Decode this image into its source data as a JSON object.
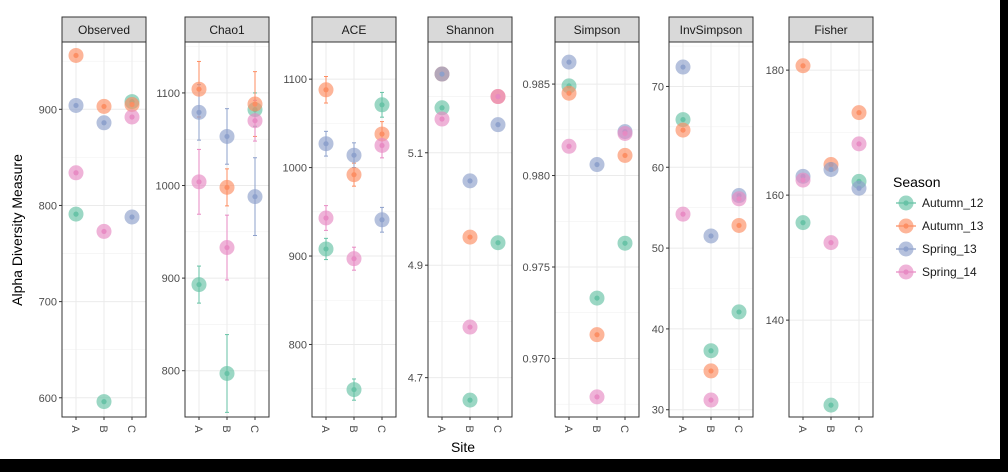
{
  "axis": {
    "xlabel": "Site",
    "ylabel": "Alpha Diversity Measure"
  },
  "legend": {
    "title": "Season",
    "position": "right",
    "items": [
      {
        "label": "Autumn_12",
        "color": "#66c2a5"
      },
      {
        "label": "Autumn_13",
        "color": "#fc8d62"
      },
      {
        "label": "Spring_13",
        "color": "#8da0cb"
      },
      {
        "label": "Spring_14",
        "color": "#e78ac3"
      }
    ]
  },
  "chart_data": [
    {
      "type": "scatter",
      "title": "Observed",
      "categories": [
        "A",
        "B",
        "C"
      ],
      "ylim": [
        580,
        970
      ],
      "yticks": [
        {
          "v": 600,
          "label": "600"
        },
        {
          "v": 700,
          "label": "700"
        },
        {
          "v": 800,
          "label": "800"
        },
        {
          "v": 900,
          "label": "900"
        }
      ],
      "series": [
        {
          "name": "Autumn_12",
          "values": [
            791,
            596,
            908
          ]
        },
        {
          "name": "Autumn_13",
          "values": [
            956,
            903,
            905
          ]
        },
        {
          "name": "Spring_13",
          "values": [
            904,
            886,
            788
          ]
        },
        {
          "name": "Spring_14",
          "values": [
            834,
            773,
            892
          ]
        }
      ]
    },
    {
      "type": "scatter",
      "title": "Chao1",
      "categories": [
        "A",
        "B",
        "C"
      ],
      "ylim": [
        750,
        1155
      ],
      "yticks": [
        {
          "v": 800,
          "label": "800"
        },
        {
          "v": 900,
          "label": "900"
        },
        {
          "v": 1000,
          "label": "1000"
        },
        {
          "v": 1100,
          "label": "1100"
        }
      ],
      "series": [
        {
          "name": "Autumn_12",
          "values": [
            893,
            797,
            1082
          ],
          "errors": [
            20,
            42,
            18
          ]
        },
        {
          "name": "Autumn_13",
          "values": [
            1104,
            998,
            1088
          ],
          "errors": [
            30,
            20,
            35
          ]
        },
        {
          "name": "Spring_13",
          "values": [
            1079,
            1053,
            988
          ],
          "errors": [
            30,
            30,
            42
          ]
        },
        {
          "name": "Spring_14",
          "values": [
            1004,
            933,
            1070
          ],
          "errors": [
            35,
            35,
            22
          ]
        }
      ]
    },
    {
      "type": "scatter",
      "title": "ACE",
      "categories": [
        "A",
        "B",
        "C"
      ],
      "ylim": [
        718,
        1142
      ],
      "yticks": [
        {
          "v": 800,
          "label": "800"
        },
        {
          "v": 900,
          "label": "900"
        },
        {
          "v": 1000,
          "label": "1000"
        },
        {
          "v": 1100,
          "label": "1100"
        }
      ],
      "series": [
        {
          "name": "Autumn_12",
          "values": [
            908,
            749,
            1071
          ],
          "errors": [
            12,
            12,
            14
          ]
        },
        {
          "name": "Autumn_13",
          "values": [
            1088,
            992,
            1038
          ],
          "errors": [
            15,
            13,
            14
          ]
        },
        {
          "name": "Spring_13",
          "values": [
            1027,
            1014,
            941
          ],
          "errors": [
            14,
            14,
            14
          ]
        },
        {
          "name": "Spring_14",
          "values": [
            943,
            897,
            1025
          ],
          "errors": [
            14,
            13,
            14
          ]
        }
      ]
    },
    {
      "type": "scatter",
      "title": "Shannon",
      "categories": [
        "A",
        "B",
        "C"
      ],
      "ylim": [
        4.63,
        5.297
      ],
      "yticks": [
        {
          "v": 4.7,
          "label": "4.7"
        },
        {
          "v": 4.9,
          "label": "4.9"
        },
        {
          "v": 5.1,
          "label": "5.1"
        }
      ],
      "series": [
        {
          "name": "Autumn_12",
          "values": [
            5.18,
            4.66,
            4.94
          ]
        },
        {
          "name": "Autumn_13",
          "values": [
            5.24,
            4.95,
            5.2
          ]
        },
        {
          "name": "Spring_13",
          "values": [
            5.24,
            5.05,
            5.15
          ]
        },
        {
          "name": "Spring_14",
          "values": [
            5.16,
            4.79,
            5.2
          ]
        }
      ]
    },
    {
      "type": "scatter",
      "title": "Simpson",
      "categories": [
        "A",
        "B",
        "C"
      ],
      "ylim": [
        0.9668,
        0.9873
      ],
      "yticks": [
        {
          "v": 0.97,
          "label": "0.970"
        },
        {
          "v": 0.975,
          "label": "0.975"
        },
        {
          "v": 0.98,
          "label": "0.980"
        },
        {
          "v": 0.985,
          "label": "0.985"
        }
      ],
      "series": [
        {
          "name": "Autumn_12",
          "values": [
            0.9849,
            0.9733,
            0.9763
          ]
        },
        {
          "name": "Autumn_13",
          "values": [
            0.9845,
            0.9713,
            0.9811
          ]
        },
        {
          "name": "Spring_13",
          "values": [
            0.9862,
            0.9806,
            0.9824
          ]
        },
        {
          "name": "Spring_14",
          "values": [
            0.9816,
            0.9679,
            0.9823
          ]
        }
      ]
    },
    {
      "type": "scatter",
      "title": "InvSimpson",
      "categories": [
        "A",
        "B",
        "C"
      ],
      "ylim": [
        29.1,
        75.5
      ],
      "yticks": [
        {
          "v": 30,
          "label": "30"
        },
        {
          "v": 40,
          "label": "40"
        },
        {
          "v": 50,
          "label": "50"
        },
        {
          "v": 60,
          "label": "60"
        },
        {
          "v": 70,
          "label": "70"
        }
      ],
      "series": [
        {
          "name": "Autumn_12",
          "values": [
            65.9,
            37.3,
            42.1
          ]
        },
        {
          "name": "Autumn_13",
          "values": [
            64.6,
            34.8,
            52.8
          ]
        },
        {
          "name": "Spring_13",
          "values": [
            72.4,
            51.5,
            56.5
          ]
        },
        {
          "name": "Spring_14",
          "values": [
            54.2,
            31.2,
            56.1
          ]
        }
      ]
    },
    {
      "type": "scatter",
      "title": "Fisher",
      "categories": [
        "A",
        "B",
        "C"
      ],
      "ylim": [
        124.5,
        184.5
      ],
      "yticks": [
        {
          "v": 140,
          "label": "140"
        },
        {
          "v": 160,
          "label": "160"
        },
        {
          "v": 180,
          "label": "180"
        }
      ],
      "series": [
        {
          "name": "Autumn_12",
          "values": [
            155.6,
            126.4,
            162.2
          ]
        },
        {
          "name": "Autumn_13",
          "values": [
            180.7,
            164.9,
            173.2
          ]
        },
        {
          "name": "Spring_13",
          "values": [
            163,
            164.1,
            161.1
          ]
        },
        {
          "name": "Spring_14",
          "values": [
            162.4,
            152.4,
            168.2
          ]
        }
      ]
    }
  ]
}
